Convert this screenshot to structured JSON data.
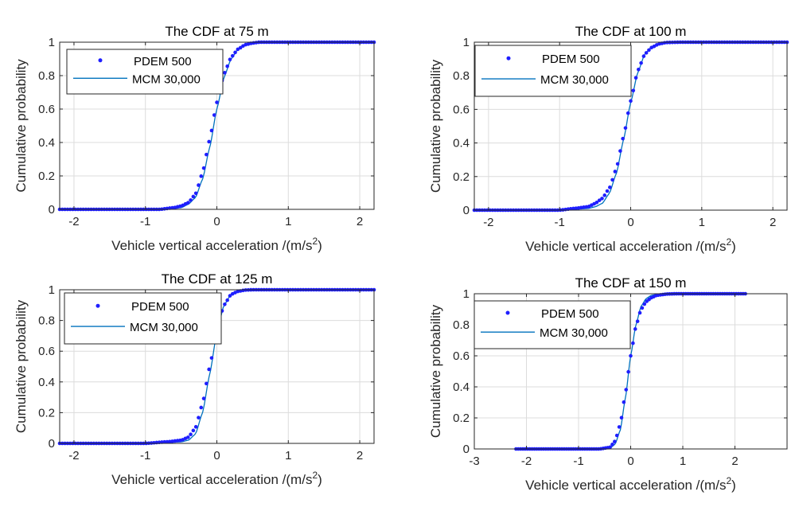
{
  "figure": {
    "colors": {
      "pdem": "#1f1fff",
      "mcm": "#0072bd",
      "grid": "#dcdcdc",
      "axis": "#262626",
      "text": "#262626"
    }
  },
  "chart_data": [
    {
      "type": "scatter",
      "title": "The CDF  at 75 m",
      "xlabel": "Vehicle vertical acceleration /(m/s",
      "xlabel_sup": "2",
      "xlabel_close": ")",
      "ylabel": "Cumulative probability",
      "xlim": [
        -2.2,
        2.2
      ],
      "ylim": [
        0,
        1
      ],
      "xticks": [
        -2,
        -1,
        0,
        1,
        2
      ],
      "xtick_labels": [
        "-2",
        "-1",
        "0",
        "1",
        "2"
      ],
      "yticks": [
        0,
        0.2,
        0.4,
        0.6,
        0.8,
        1
      ],
      "ytick_labels": [
        "0",
        "0.2",
        "0.4",
        "0.6",
        "0.8",
        "1"
      ],
      "grid": true,
      "legend_position": "top-left",
      "series": [
        {
          "name": "PDEM 500",
          "style": "markers",
          "x_range": [
            -2.2,
            2.2
          ],
          "count": 120,
          "x": [
            -0.8,
            -0.6,
            -0.5,
            -0.4,
            -0.3,
            -0.2,
            -0.1,
            0,
            0.1,
            0.2,
            0.3,
            0.4,
            0.5,
            0.6,
            0.8
          ],
          "values": [
            0,
            0.01,
            0.02,
            0.04,
            0.09,
            0.22,
            0.42,
            0.64,
            0.81,
            0.91,
            0.96,
            0.985,
            0.995,
            1,
            1
          ]
        },
        {
          "name": "MCM 30,000",
          "style": "line",
          "x_range": [
            -2.2,
            2.2
          ],
          "x": [
            -0.8,
            -0.6,
            -0.5,
            -0.4,
            -0.3,
            -0.2,
            -0.1,
            0,
            0.1,
            0.2,
            0.3,
            0.4,
            0.5,
            0.6,
            0.8
          ],
          "values": [
            0,
            0.005,
            0.01,
            0.03,
            0.07,
            0.18,
            0.37,
            0.6,
            0.79,
            0.9,
            0.96,
            0.985,
            0.995,
            1,
            1
          ]
        }
      ]
    },
    {
      "type": "scatter",
      "title": "The CDF  at 100 m",
      "xlabel": "Vehicle vertical acceleration /(m/s",
      "xlabel_sup": "2",
      "xlabel_close": ")",
      "ylabel": "Cumulative probability",
      "xlim": [
        -2.2,
        2.2
      ],
      "ylim": [
        0,
        1
      ],
      "xticks": [
        -2,
        -1,
        0,
        1,
        2
      ],
      "xtick_labels": [
        "-2",
        "-1",
        "0",
        "1",
        "2"
      ],
      "yticks": [
        0,
        0.2,
        0.4,
        0.6,
        0.8,
        1
      ],
      "ytick_labels": [
        "0",
        "0.2",
        "0.4",
        "0.6",
        "0.8",
        "1"
      ],
      "grid": true,
      "legend_position": "top-left",
      "series": [
        {
          "name": "PDEM 500",
          "style": "markers",
          "x_range": [
            -2.2,
            2.2
          ],
          "count": 120,
          "x": [
            -1.0,
            -0.8,
            -0.6,
            -0.5,
            -0.4,
            -0.3,
            -0.2,
            -0.1,
            0,
            0.1,
            0.2,
            0.3,
            0.4,
            0.5,
            0.7
          ],
          "values": [
            0,
            0.01,
            0.02,
            0.04,
            0.07,
            0.13,
            0.25,
            0.44,
            0.65,
            0.83,
            0.93,
            0.97,
            0.99,
            0.998,
            1
          ]
        },
        {
          "name": "MCM 30,000",
          "style": "line",
          "x_range": [
            -2.2,
            2.2
          ],
          "x": [
            -1.0,
            -0.8,
            -0.6,
            -0.5,
            -0.4,
            -0.3,
            -0.2,
            -0.1,
            0,
            0.1,
            0.2,
            0.3,
            0.4,
            0.5,
            0.7
          ],
          "values": [
            0,
            0.005,
            0.01,
            0.02,
            0.04,
            0.1,
            0.22,
            0.42,
            0.64,
            0.82,
            0.93,
            0.975,
            0.99,
            0.998,
            1
          ]
        }
      ]
    },
    {
      "type": "scatter",
      "title": "The CDF  at 125 m",
      "xlabel": "Vehicle vertical acceleration /(m/s",
      "xlabel_sup": "2",
      "xlabel_close": ")",
      "ylabel": "Cumulative probability",
      "xlim": [
        -2.2,
        2.2
      ],
      "ylim": [
        0,
        1
      ],
      "xticks": [
        -2,
        -1,
        0,
        1,
        2
      ],
      "xtick_labels": [
        "-2",
        "-1",
        "0",
        "1",
        "2"
      ],
      "yticks": [
        0,
        0.2,
        0.4,
        0.6,
        0.8,
        1
      ],
      "ytick_labels": [
        "0",
        "0.2",
        "0.4",
        "0.6",
        "0.8",
        "1"
      ],
      "grid": true,
      "legend_position": "top-left",
      "series": [
        {
          "name": "PDEM 500",
          "style": "markers",
          "x_range": [
            -2.2,
            2.2
          ],
          "count": 120,
          "x": [
            -1.0,
            -0.7,
            -0.5,
            -0.4,
            -0.3,
            -0.2,
            -0.1,
            0,
            0.1,
            0.2,
            0.3,
            0.4,
            0.5,
            0.7
          ],
          "values": [
            0,
            0.01,
            0.02,
            0.04,
            0.1,
            0.26,
            0.5,
            0.74,
            0.9,
            0.97,
            0.99,
            0.998,
            1,
            1
          ]
        },
        {
          "name": "MCM 30,000",
          "style": "line",
          "x_range": [
            -2.2,
            2.2
          ],
          "x": [
            -1.0,
            -0.7,
            -0.5,
            -0.4,
            -0.3,
            -0.2,
            -0.1,
            0,
            0.1,
            0.2,
            0.3,
            0.4,
            0.5,
            0.7
          ],
          "values": [
            0,
            0.005,
            0.01,
            0.02,
            0.06,
            0.2,
            0.45,
            0.72,
            0.9,
            0.97,
            0.99,
            0.998,
            1,
            1
          ]
        }
      ]
    },
    {
      "type": "scatter",
      "title": "The CDF  at 150 m",
      "xlabel": "Vehicle vertical acceleration /(m/s",
      "xlabel_sup": "2",
      "xlabel_close": ")",
      "ylabel": "Cumulative probability",
      "xlim": [
        -3,
        3
      ],
      "ylim": [
        0,
        1
      ],
      "xticks": [
        -3,
        -2,
        -1,
        0,
        1,
        2
      ],
      "xtick_labels": [
        "-3",
        "-2",
        "-1",
        "0",
        "1",
        "2"
      ],
      "yticks": [
        0,
        0.2,
        0.4,
        0.6,
        0.8,
        1
      ],
      "ytick_labels": [
        "0",
        "0.2",
        "0.4",
        "0.6",
        "0.8",
        "1"
      ],
      "grid": true,
      "legend_position": "top-left",
      "series": [
        {
          "name": "PDEM 500",
          "style": "markers",
          "x_range": [
            -2.2,
            2.2
          ],
          "count": 100,
          "x": [
            -0.6,
            -0.4,
            -0.3,
            -0.2,
            -0.1,
            0,
            0.1,
            0.2,
            0.3,
            0.4,
            0.5,
            0.7,
            0.9
          ],
          "values": [
            0,
            0.01,
            0.05,
            0.16,
            0.36,
            0.6,
            0.79,
            0.9,
            0.95,
            0.975,
            0.99,
            0.998,
            1
          ]
        },
        {
          "name": "MCM 30,000",
          "style": "line",
          "x_range": [
            -2.2,
            2.2
          ],
          "x": [
            -0.6,
            -0.4,
            -0.3,
            -0.2,
            -0.1,
            0,
            0.1,
            0.2,
            0.3,
            0.4,
            0.5,
            0.7,
            0.9
          ],
          "values": [
            0,
            0.005,
            0.03,
            0.12,
            0.33,
            0.6,
            0.8,
            0.92,
            0.97,
            0.99,
            0.996,
            0.999,
            1
          ]
        }
      ]
    }
  ]
}
